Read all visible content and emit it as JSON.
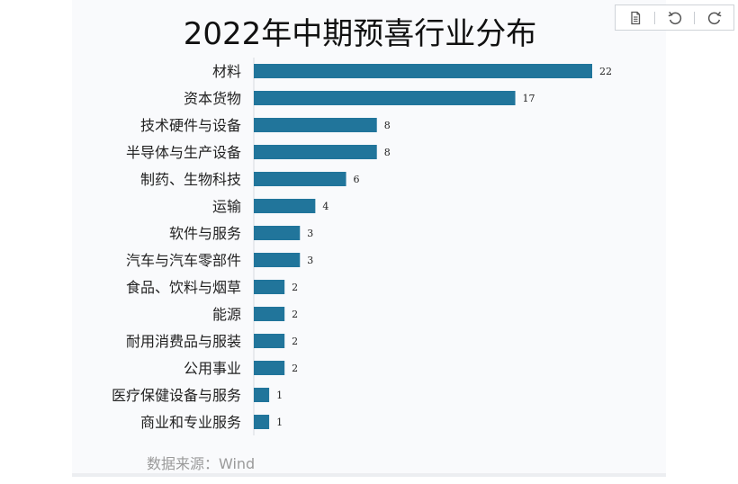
{
  "toolbar": {
    "buttons": [
      {
        "icon": "document-icon"
      },
      {
        "icon": "undo-icon"
      },
      {
        "icon": "refresh-icon"
      }
    ]
  },
  "source": "数据来源：Wind",
  "colors": {
    "bar": "#21759b",
    "panel": "#f9fafc"
  },
  "chart_data": {
    "type": "bar",
    "orientation": "horizontal",
    "title": "2022年中期预喜行业分布",
    "categories": [
      "材料",
      "资本货物",
      "技术硬件与设备",
      "半导体与生产设备",
      "制药、生物科技",
      "运输",
      "软件与服务",
      "汽车与汽车零部件",
      "食品、饮料与烟草",
      "能源",
      "耐用消费品与服装",
      "公用事业",
      "医疗保健设备与服务",
      "商业和专业服务"
    ],
    "values": [
      22,
      17,
      8,
      8,
      6,
      4,
      3,
      3,
      2,
      2,
      2,
      2,
      1,
      1
    ],
    "data_labels": [
      "22",
      "17",
      "8",
      "8",
      "6",
      "4",
      "3",
      "3",
      "2",
      "2",
      "2",
      "2",
      "1",
      "1"
    ],
    "xlim": [
      0,
      22
    ],
    "grid": false,
    "legend": "none"
  }
}
